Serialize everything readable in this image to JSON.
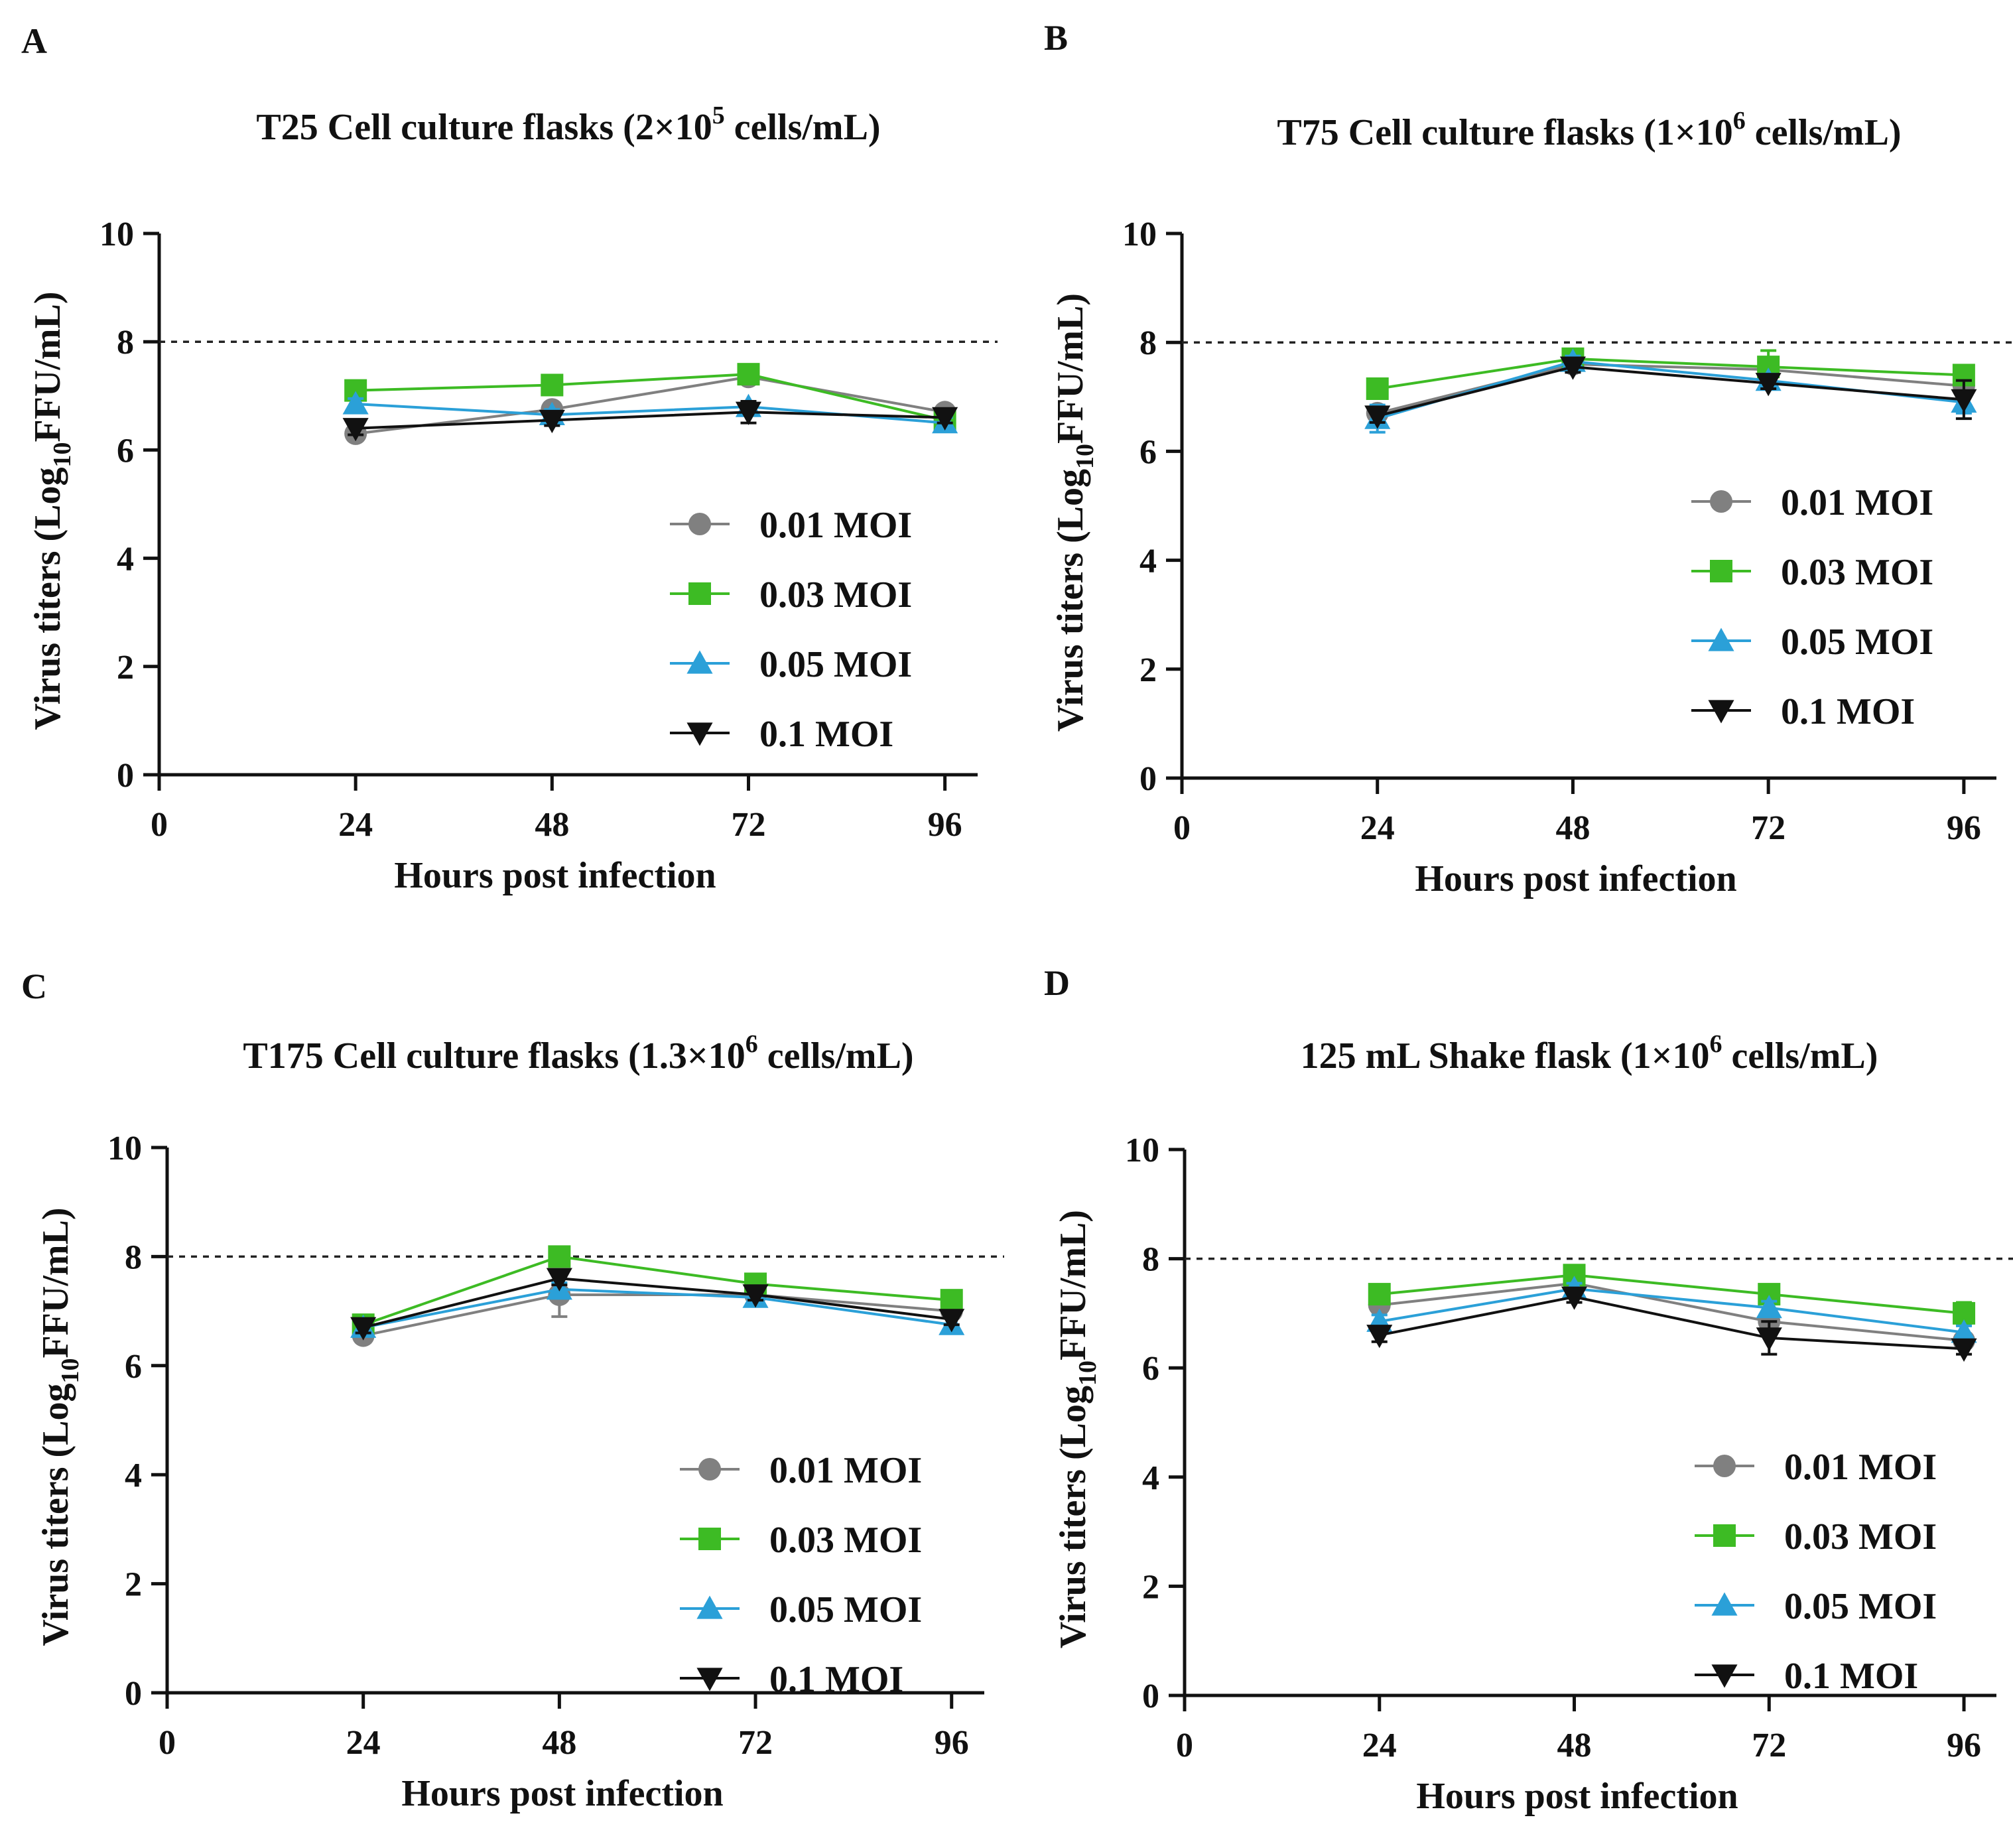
{
  "chart_data": [
    {
      "type": "line",
      "panel_label": "A",
      "title": "T25 Cell culture flasks (2×10",
      "title_sup": "5",
      "title_tail": " cells/mL)",
      "xlabel": "Hours post infection",
      "ylabel": "Virus titers (Log",
      "ylabel_sub": "10",
      "ylabel_tail": "FFU/mL)",
      "x": [
        24,
        48,
        72,
        96
      ],
      "xlim": [
        0,
        100
      ],
      "ylim": [
        0,
        10
      ],
      "xticks": [
        "0",
        "24",
        "48",
        "72",
        "96"
      ],
      "yticks": [
        "0",
        "2",
        "4",
        "6",
        "8",
        "10"
      ],
      "reference_line": 8,
      "legend_position": "bottom-right",
      "grid": false,
      "series": [
        {
          "name": "0.01 MOI",
          "marker": "circle",
          "color": "#808080",
          "values": [
            6.3,
            6.75,
            7.35,
            6.7
          ],
          "errors": [
            0.1,
            0.12,
            0.12,
            0.12
          ]
        },
        {
          "name": "0.03 MOI",
          "marker": "square",
          "color": "#3dbb24",
          "values": [
            7.1,
            7.2,
            7.4,
            6.55
          ],
          "errors": [
            0.08,
            0.08,
            0.08,
            0.1
          ]
        },
        {
          "name": "0.05 MOI",
          "marker": "triangle-up",
          "color": "#2ba0d8",
          "values": [
            6.85,
            6.65,
            6.8,
            6.5
          ],
          "errors": [
            0.1,
            0.1,
            0.1,
            0.1
          ]
        },
        {
          "name": "0.1 MOI",
          "marker": "triangle-down",
          "color": "#111111",
          "values": [
            6.4,
            6.55,
            6.7,
            6.6
          ],
          "errors": [
            0.12,
            0.1,
            0.2,
            0.1
          ]
        }
      ]
    },
    {
      "type": "line",
      "panel_label": "B",
      "title": "T75 Cell culture flasks (1×10",
      "title_sup": "6",
      "title_tail": " cells/mL)",
      "xlabel": "Hours post infection",
      "ylabel": "Virus titers (Log",
      "ylabel_sub": "10",
      "ylabel_tail": "FFU/mL)",
      "x": [
        24,
        48,
        72,
        96
      ],
      "xlim": [
        0,
        100
      ],
      "ylim": [
        0,
        10
      ],
      "xticks": [
        "0",
        "24",
        "48",
        "72",
        "96"
      ],
      "yticks": [
        "0",
        "2",
        "4",
        "6",
        "8",
        "10"
      ],
      "reference_line": 8,
      "legend_position": "bottom-right",
      "grid": false,
      "series": [
        {
          "name": "0.01 MOI",
          "marker": "circle",
          "color": "#808080",
          "values": [
            6.7,
            7.6,
            7.5,
            7.2
          ],
          "errors": [
            0.12,
            0.12,
            0.2,
            0.15
          ]
        },
        {
          "name": "0.03 MOI",
          "marker": "square",
          "color": "#3dbb24",
          "values": [
            7.15,
            7.7,
            7.55,
            7.4
          ],
          "errors": [
            0.1,
            0.1,
            0.3,
            0.1
          ]
        },
        {
          "name": "0.05 MOI",
          "marker": "triangle-up",
          "color": "#2ba0d8",
          "values": [
            6.6,
            7.65,
            7.3,
            6.9
          ],
          "errors": [
            0.25,
            0.1,
            0.12,
            0.2
          ]
        },
        {
          "name": "0.1 MOI",
          "marker": "triangle-down",
          "color": "#111111",
          "values": [
            6.65,
            7.55,
            7.25,
            6.95
          ],
          "errors": [
            0.12,
            0.1,
            0.1,
            0.35
          ]
        }
      ]
    },
    {
      "type": "line",
      "panel_label": "C",
      "title": "T175 Cell culture flasks (1.3×10",
      "title_sup": "6",
      "title_tail": " cells/mL)",
      "xlabel": "Hours post infection",
      "ylabel": "Virus titers (Log",
      "ylabel_sub": "10",
      "ylabel_tail": "FFU/mL)",
      "x": [
        24,
        48,
        72,
        96
      ],
      "xlim": [
        0,
        100
      ],
      "ylim": [
        0,
        10
      ],
      "xticks": [
        "0",
        "24",
        "48",
        "72",
        "96"
      ],
      "yticks": [
        "0",
        "2",
        "4",
        "6",
        "8",
        "10"
      ],
      "reference_line": 8,
      "legend_position": "bottom-right",
      "grid": false,
      "series": [
        {
          "name": "0.01 MOI",
          "marker": "circle",
          "color": "#808080",
          "values": [
            6.55,
            7.3,
            7.3,
            7.0
          ],
          "errors": [
            0.12,
            0.4,
            0.12,
            0.12
          ]
        },
        {
          "name": "0.03 MOI",
          "marker": "square",
          "color": "#3dbb24",
          "values": [
            6.75,
            8.0,
            7.5,
            7.2
          ],
          "errors": [
            0.1,
            0.1,
            0.1,
            0.1
          ]
        },
        {
          "name": "0.05 MOI",
          "marker": "triangle-up",
          "color": "#2ba0d8",
          "values": [
            6.7,
            7.4,
            7.25,
            6.75
          ],
          "errors": [
            0.1,
            0.12,
            0.1,
            0.15
          ]
        },
        {
          "name": "0.1 MOI",
          "marker": "triangle-down",
          "color": "#111111",
          "values": [
            6.7,
            7.6,
            7.3,
            6.85
          ],
          "errors": [
            0.1,
            0.12,
            0.1,
            0.1
          ]
        }
      ]
    },
    {
      "type": "line",
      "panel_label": "D",
      "title": "125 mL Shake flask  (1×10",
      "title_sup": "6",
      "title_tail": " cells/mL)",
      "xlabel": "Hours post infection",
      "ylabel": "Virus titers (Log",
      "ylabel_sub": "10",
      "ylabel_tail": "FFU/mL)",
      "x": [
        24,
        48,
        72,
        96
      ],
      "xlim": [
        0,
        100
      ],
      "ylim": [
        0,
        10
      ],
      "xticks": [
        "0",
        "24",
        "48",
        "72",
        "96"
      ],
      "yticks": [
        "0",
        "2",
        "4",
        "6",
        "8",
        "10"
      ],
      "reference_line": 8,
      "legend_position": "bottom-right",
      "grid": false,
      "series": [
        {
          "name": "0.01 MOI",
          "marker": "circle",
          "color": "#808080",
          "values": [
            7.15,
            7.55,
            6.85,
            6.5
          ],
          "errors": [
            0.1,
            0.1,
            0.15,
            0.1
          ]
        },
        {
          "name": "0.03 MOI",
          "marker": "square",
          "color": "#3dbb24",
          "values": [
            7.35,
            7.7,
            7.35,
            7.0
          ],
          "errors": [
            0.15,
            0.15,
            0.1,
            0.2
          ]
        },
        {
          "name": "0.05 MOI",
          "marker": "triangle-up",
          "color": "#2ba0d8",
          "values": [
            6.85,
            7.45,
            7.1,
            6.65
          ],
          "errors": [
            0.12,
            0.1,
            0.12,
            0.12
          ]
        },
        {
          "name": "0.1 MOI",
          "marker": "triangle-down",
          "color": "#111111",
          "values": [
            6.6,
            7.3,
            6.55,
            6.35
          ],
          "errors": [
            0.12,
            0.1,
            0.3,
            0.1
          ]
        }
      ]
    }
  ]
}
